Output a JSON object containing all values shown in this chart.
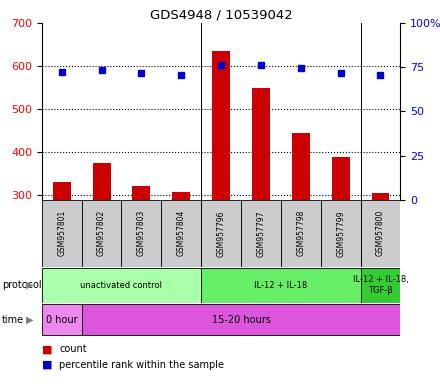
{
  "title": "GDS4948 / 10539042",
  "samples": [
    "GSM957801",
    "GSM957802",
    "GSM957803",
    "GSM957804",
    "GSM957796",
    "GSM957797",
    "GSM957798",
    "GSM957799",
    "GSM957800"
  ],
  "counts": [
    330,
    375,
    322,
    308,
    635,
    550,
    445,
    390,
    305
  ],
  "percentile_ranks": [
    72,
    73.5,
    71.5,
    70.5,
    76,
    76.5,
    74.5,
    71.5,
    70.5
  ],
  "ylim_left": [
    290,
    700
  ],
  "ylim_right": [
    0,
    100
  ],
  "yticks_left": [
    300,
    400,
    500,
    600,
    700
  ],
  "yticks_right": [
    0,
    25,
    50,
    75,
    100
  ],
  "bar_color": "#cc0000",
  "dot_color": "#0000cc",
  "protocol_labels": [
    {
      "text": "unactivated control",
      "start": 0,
      "end": 4,
      "color": "#aaffaa"
    },
    {
      "text": "IL-12 + IL-18",
      "start": 4,
      "end": 8,
      "color": "#66ee66"
    },
    {
      "text": "IL-12 + IL-18,\nTGF-β",
      "start": 8,
      "end": 9,
      "color": "#33cc33"
    }
  ],
  "time_labels": [
    {
      "text": "0 hour",
      "start": 0,
      "end": 1,
      "color": "#ee88ee"
    },
    {
      "text": "15-20 hours",
      "start": 1,
      "end": 9,
      "color": "#dd55dd"
    }
  ],
  "sample_box_color": "#cccccc",
  "legend_count_label": "count",
  "legend_pct_label": "percentile rank within the sample",
  "group_dividers": [
    3.5,
    7.5
  ]
}
